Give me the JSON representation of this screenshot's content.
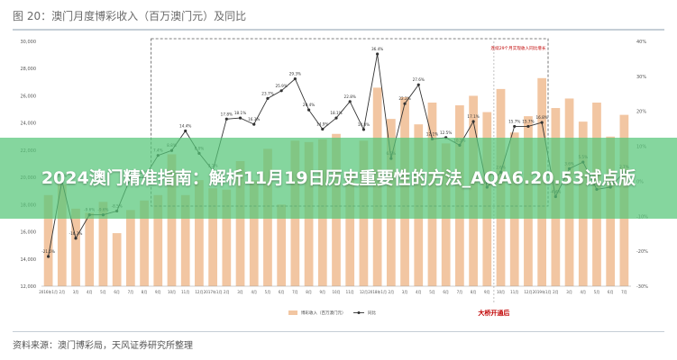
{
  "title": "图 20：澳门月度博彩收入（百万澳门元）及同比",
  "banner_text": "2024澳门精准指南：解析11月19日历史重要性的方法_AQA6.20.53试点版",
  "source_text": "资料来源：澳门博彩局，天风证券研究所整理",
  "colors": {
    "bar": "#f2c6a2",
    "line": "#333333",
    "annotation_box": "#555555",
    "highlight_text": "#c00000",
    "banner_bg": "#56c678",
    "title_rule": "#c5ced6"
  },
  "chart_data": {
    "type": "bar+line",
    "y_left_ticks": [
      "30,000",
      "28,000",
      "26,000",
      "24,000",
      "22,000",
      "20,000",
      "18,000",
      "16,000",
      "14,000",
      "12,000"
    ],
    "y_left_range": [
      12000,
      30000
    ],
    "y_right_ticks": [
      "40%",
      "30%",
      "20%",
      "10%",
      "0%",
      "-10%",
      "-20%",
      "-30%"
    ],
    "y_right_range": [
      -30,
      40
    ],
    "categories": [
      "2016年1月",
      "2月",
      "3月",
      "4月",
      "5月",
      "6月",
      "7月",
      "8月",
      "9月",
      "10月",
      "11月",
      "12月",
      "2017年1月",
      "2月",
      "3月",
      "4月",
      "5月",
      "6月",
      "7月",
      "8月",
      "9月",
      "10月",
      "11月",
      "12月",
      "2018年1月",
      "2月",
      "3月",
      "4月",
      "5月",
      "6月",
      "7月",
      "8月",
      "9月",
      "10月",
      "11月",
      "12月",
      "2019年1月",
      "2月",
      "3月",
      "4月",
      "5月",
      "6月",
      "7月"
    ],
    "series": [
      {
        "name": "博彩收入（百万澳门元）",
        "type": "bar",
        "values": [
          18700,
          19500,
          17700,
          17400,
          18200,
          15900,
          17600,
          18300,
          18700,
          21700,
          18700,
          19800,
          19200,
          19100,
          21200,
          19800,
          22100,
          18000,
          22700,
          22600,
          22800,
          23200,
          20400,
          22700,
          26600,
          24300,
          25900,
          23900,
          25500,
          22500,
          25300,
          26000,
          24800,
          26500,
          23300,
          24500,
          27300,
          25100,
          25800,
          24100,
          25500,
          23000,
          24600
        ]
      },
      {
        "name": "同比",
        "type": "line",
        "values": [
          -21.5,
          0.1,
          -16.3,
          -9.6,
          -9.6,
          -8.5,
          1.1,
          1.1,
          7.4,
          8.8,
          14.4,
          8.0,
          3.1,
          17.8,
          18.1,
          16.3,
          23.7,
          25.9,
          29.3,
          20.4,
          14.9,
          18.1,
          22.8,
          14.8,
          36.4,
          6.5,
          22.2,
          27.6,
          12.1,
          12.5,
          10.3,
          17.1,
          -1.7,
          2.6,
          15.7,
          15.7,
          16.8,
          -4.4,
          3.6,
          5.5,
          -2.3,
          -1.7,
          2.7
        ]
      }
    ],
    "data_labels": [
      "-21.5%",
      "0.1%",
      "-16.3%",
      "-9.6%",
      "-9.6%",
      "-8.5%",
      "1.1%",
      "1.1%",
      "7.4%",
      "8.8%",
      "14.4%",
      "8.0%",
      "3.1%",
      "17.8%",
      "18.1%",
      "16.3%",
      "23.7%",
      "25.9%",
      "29.3%",
      "20.4%",
      "14.9%",
      "18.1%",
      "22.8%",
      "14.8%",
      "36.4%",
      "6.5%",
      "22.2%",
      "27.6%",
      "12.1%",
      "12.5%",
      "10.3%",
      "17.1%",
      "-1.7%",
      "2.6%",
      "15.7%",
      "15.7%",
      "16.8%",
      "-4.4%",
      "3.6%",
      "5.5%",
      "-2.3%",
      "-1.7%",
      "2.7%"
    ],
    "annotation_box_label": "连续29个月实现收入同比增长",
    "milestone_label": "大桥开通后",
    "milestone_index": 32,
    "legend": [
      "博彩收入（百万澳门元）",
      "同比"
    ],
    "legend_position": "bottom"
  }
}
